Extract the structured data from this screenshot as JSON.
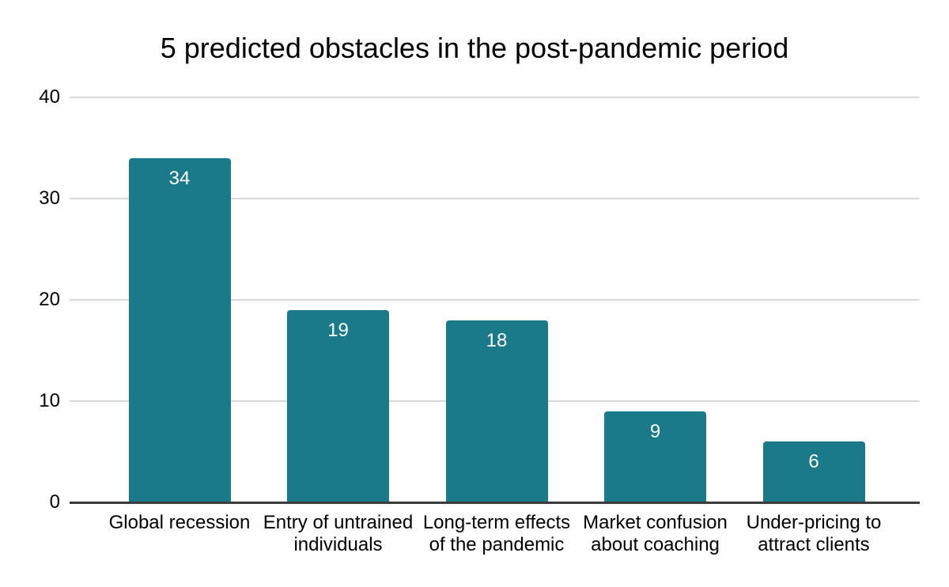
{
  "chart_data": {
    "type": "bar",
    "title": "5 predicted obstacles in the post-pandemic period",
    "categories": [
      "Global recession",
      "Entry of untrained individuals",
      "Long-term effects of the pandemic",
      "Market confusion about coaching",
      "Under-pricing to attract clients"
    ],
    "values": [
      34,
      19,
      18,
      9,
      6
    ],
    "xlabel": "",
    "ylabel": "",
    "ylim": [
      0,
      40
    ],
    "yticks": [
      0,
      10,
      20,
      30,
      40
    ],
    "grid": true,
    "legend_position": "none",
    "value_labels_position": "inside-top",
    "colors": {
      "bar": "#1a7a8a",
      "value_label": "#ffffff",
      "gridline": "#d9d9d9",
      "axis_line": "#3c3c3c",
      "text": "#000000",
      "background": "#ffffff"
    }
  }
}
